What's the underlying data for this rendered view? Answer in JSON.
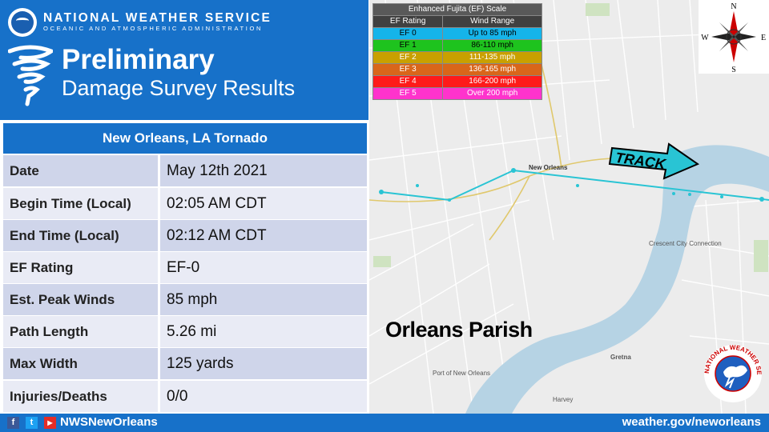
{
  "header": {
    "org_name": "NATIONAL WEATHER SERVICE",
    "org_sub": "OCEANIC AND ATMOSPHERIC ADMINISTRATION",
    "title": "Preliminary",
    "subtitle": "Damage Survey Results"
  },
  "survey": {
    "heading": "New Orleans, LA Tornado",
    "rows": [
      {
        "label": "Date",
        "value": "May 12th 2021"
      },
      {
        "label": "Begin Time (Local)",
        "value": "02:05 AM CDT"
      },
      {
        "label": "End Time (Local)",
        "value": "02:12 AM CDT"
      },
      {
        "label": "EF Rating",
        "value": "EF-0"
      },
      {
        "label": "Est. Peak Winds",
        "value": "85 mph"
      },
      {
        "label": "Path Length",
        "value": "5.26 mi"
      },
      {
        "label": "Max Width",
        "value": "125 yards"
      },
      {
        "label": "Injuries/Deaths",
        "value": "0/0"
      }
    ]
  },
  "ef_scale": {
    "title": "Enhanced Fujita (EF) Scale",
    "col_rating": "EF Rating",
    "col_wind": "Wind Range",
    "rows": [
      {
        "rating": "EF 0",
        "wind": "Up to 85 mph",
        "color": "#15b4ea"
      },
      {
        "rating": "EF 1",
        "wind": "86-110 mph",
        "color": "#1ec31e"
      },
      {
        "rating": "EF 2",
        "wind": "111-135 mph",
        "color": "#c9a000"
      },
      {
        "rating": "EF 3",
        "wind": "136-165 mph",
        "color": "#d9661a"
      },
      {
        "rating": "EF 4",
        "wind": "166-200 mph",
        "color": "#ff1a1a"
      },
      {
        "rating": "EF 5",
        "wind": "Over 200 mph",
        "color": "#ff33cc"
      }
    ]
  },
  "map": {
    "parish_label": "Orleans Parish",
    "track_label": "TRACK",
    "compass": {
      "n": "N",
      "s": "S",
      "e": "E",
      "w": "W"
    },
    "labels": {
      "new_orleans": "New Orleans",
      "crescent": "Crescent City Connection",
      "gretna": "Gretna",
      "harvey": "Harvey",
      "port": "Port of New Orleans"
    },
    "track_color": "#29c4d4"
  },
  "footer": {
    "handle": "NWSNewOrleans",
    "url": "weather.gov/neworleans"
  }
}
